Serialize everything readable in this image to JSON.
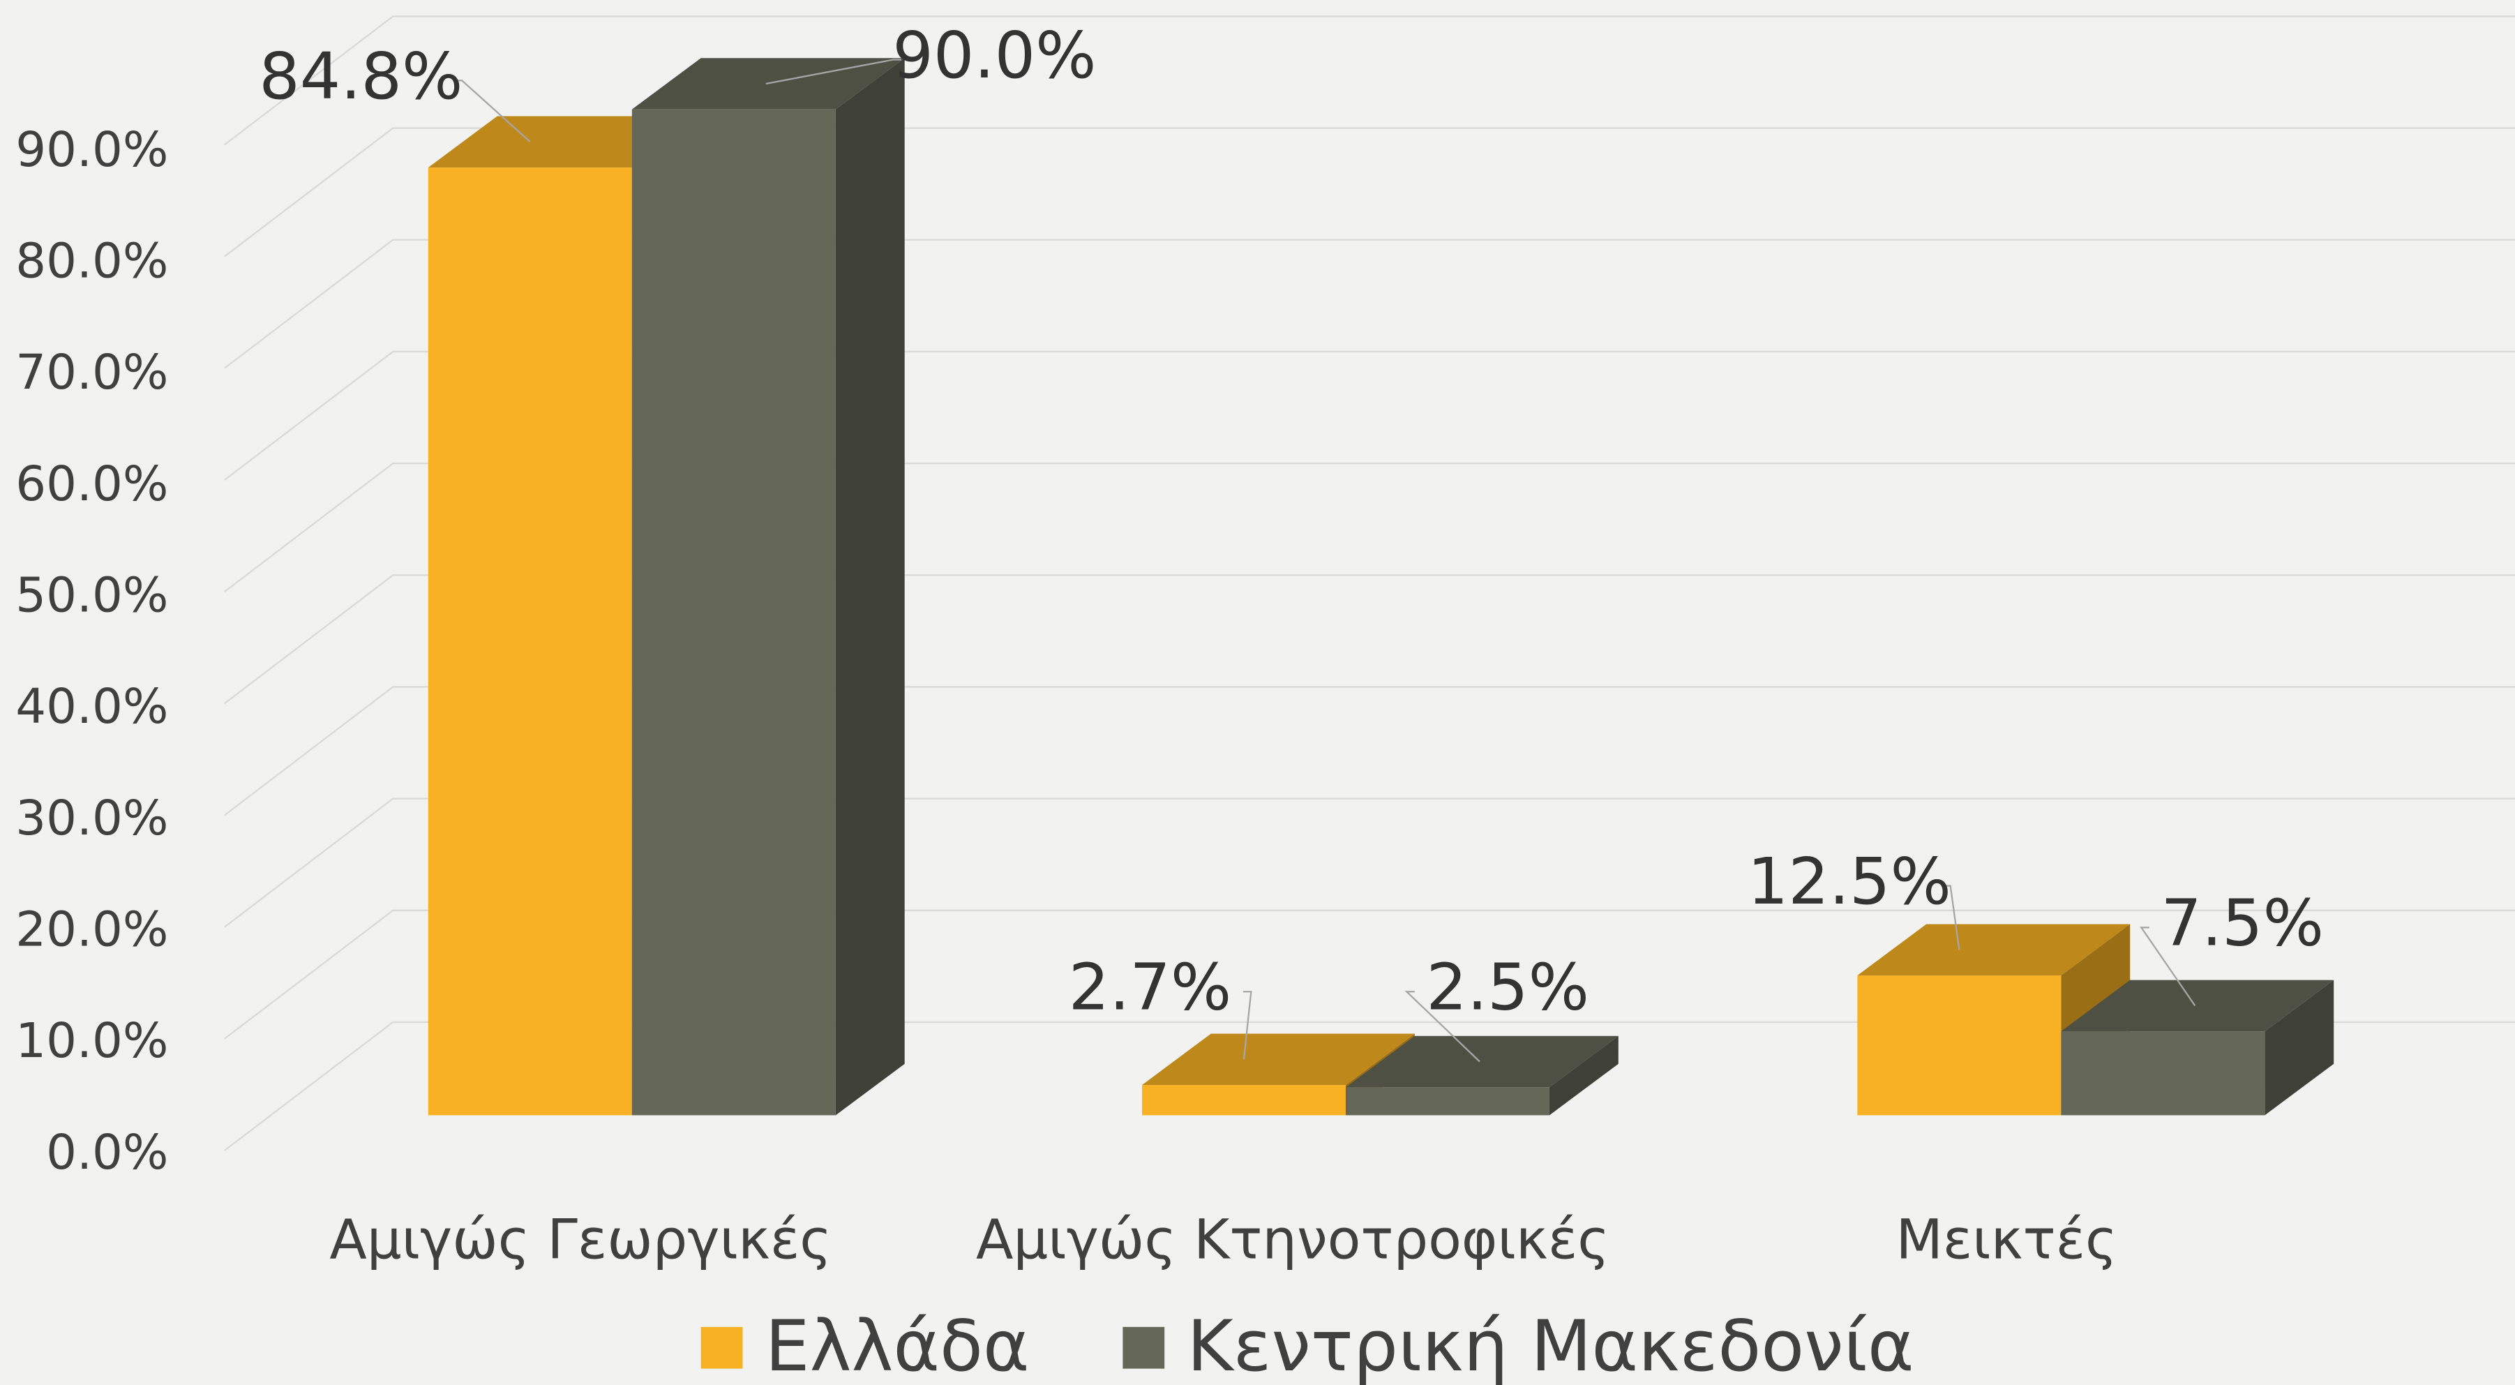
{
  "chart_data": {
    "type": "bar3d",
    "categories": [
      "Αμιγώς Γεωργικές",
      "Αμιγώς Κτηνοτροφικές",
      "Μεικτές"
    ],
    "series": [
      {
        "name": "Ελλάδα",
        "color": "#f8b122",
        "values": [
          84.8,
          2.7,
          12.5
        ],
        "value_labels": [
          "84.8%",
          "2.7%",
          "12.5%"
        ]
      },
      {
        "name": "Κεντρική Μακεδονία",
        "color": "#656858",
        "values": [
          90.0,
          2.5,
          7.5
        ],
        "value_labels": [
          "90.0%",
          "2.5%",
          "7.5%"
        ]
      }
    ],
    "ylim": [
      0,
      90
    ],
    "yticks": [
      {
        "value": 0,
        "label": "0.0%"
      },
      {
        "value": 10,
        "label": "10.0%"
      },
      {
        "value": 20,
        "label": "20.0%"
      },
      {
        "value": 30,
        "label": "30.0%"
      },
      {
        "value": 40,
        "label": "40.0%"
      },
      {
        "value": 50,
        "label": "50.0%"
      },
      {
        "value": 60,
        "label": "60.0%"
      },
      {
        "value": 70,
        "label": "70.0%"
      },
      {
        "value": 80,
        "label": "80.0%"
      },
      {
        "value": 90,
        "label": "90.0%"
      }
    ],
    "grid": true,
    "legend": "bottom"
  }
}
